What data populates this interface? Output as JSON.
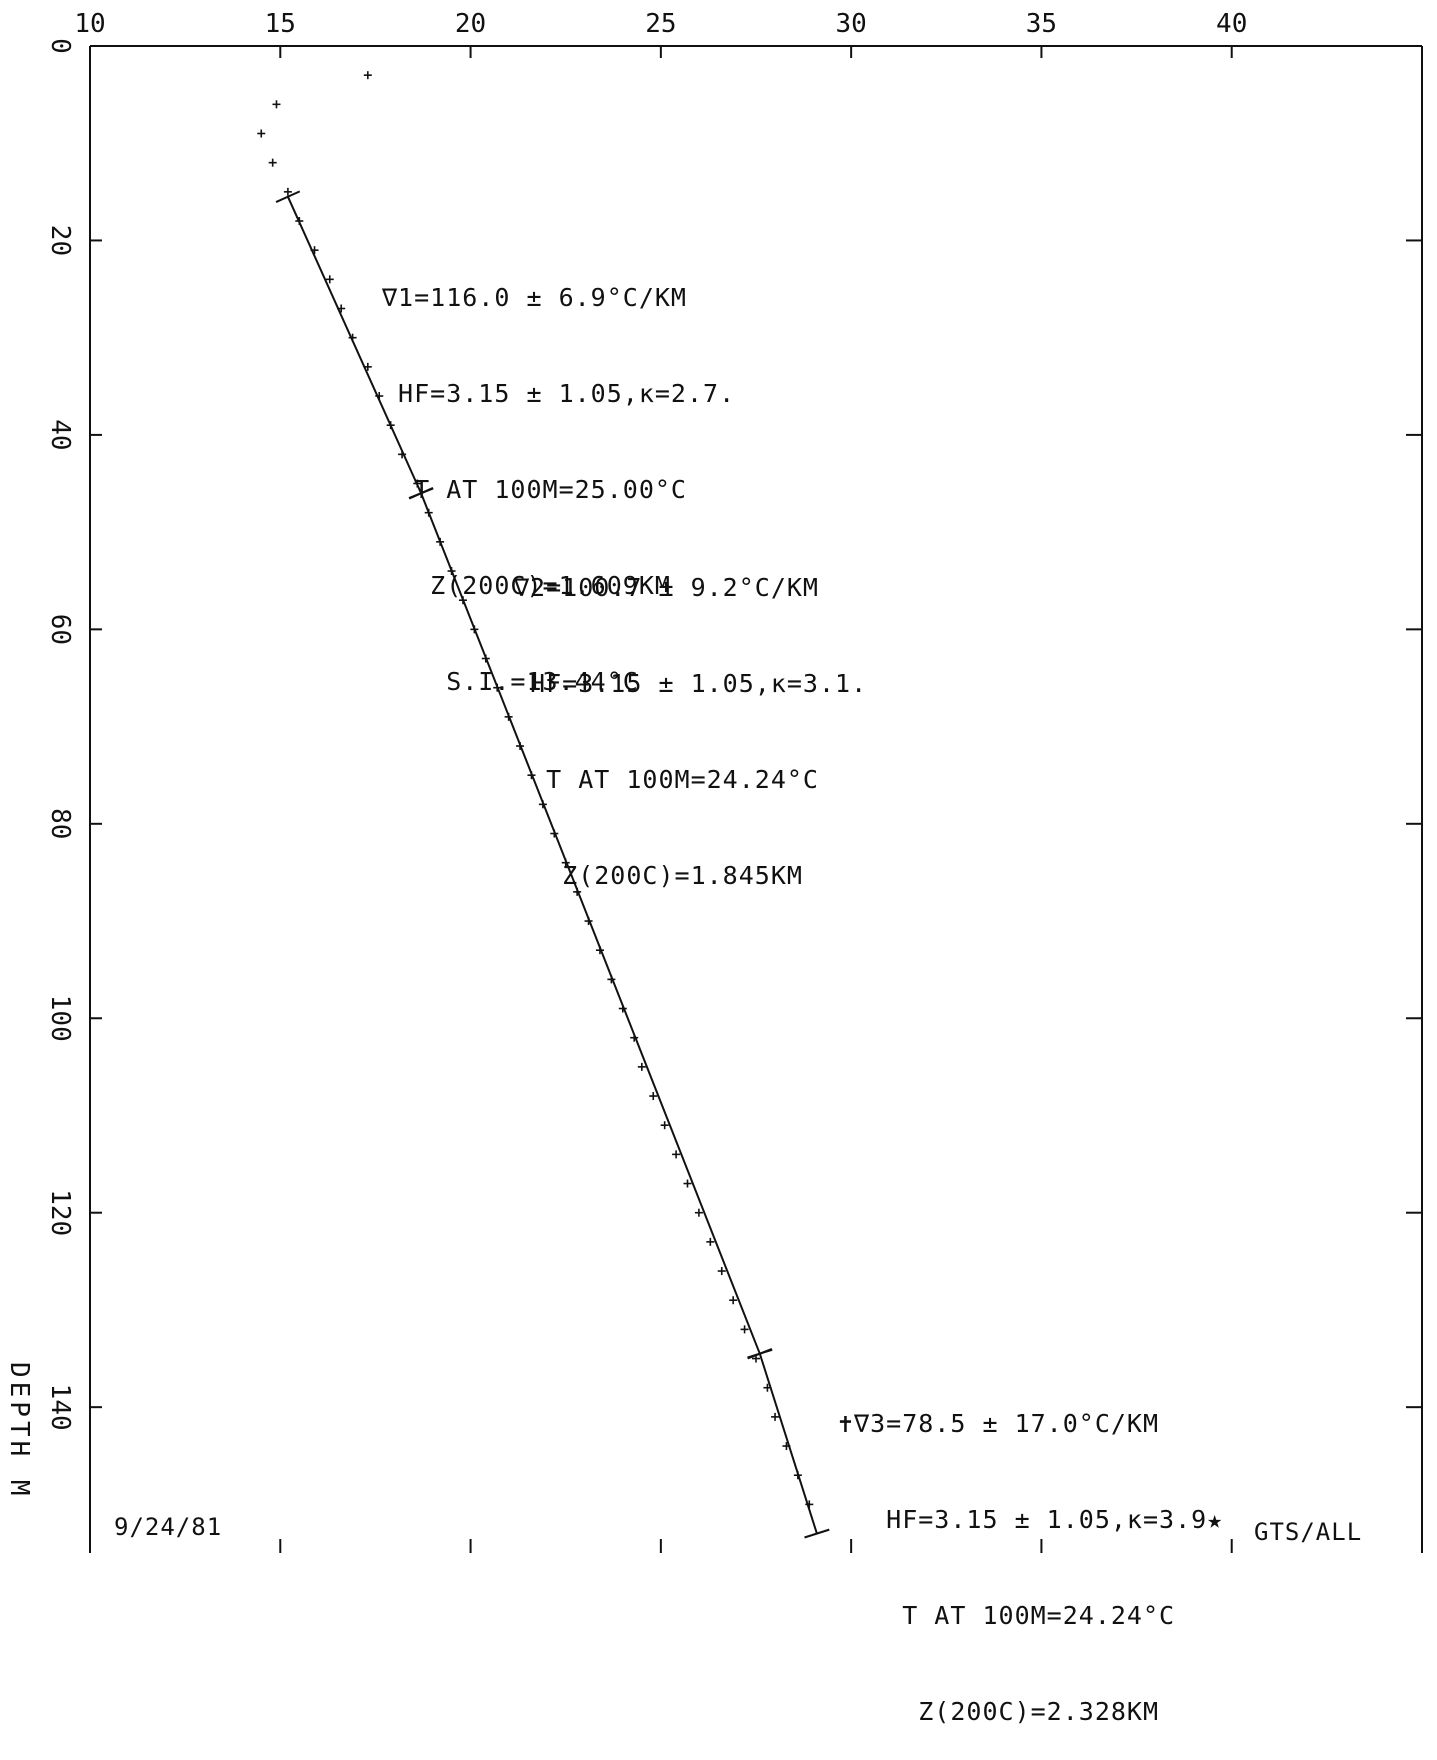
{
  "chart_data": {
    "type": "scatter",
    "title": "",
    "xlabel": "",
    "ylabel": "DEPTH M",
    "xlim": [
      10,
      45
    ],
    "ylim": [
      0,
      155
    ],
    "y_inverted": true,
    "x_ticks": [
      "10",
      "15",
      "20",
      "25",
      "30",
      "35",
      "40"
    ],
    "y_ticks": [
      "0",
      "20",
      "40",
      "60",
      "80",
      "100",
      "120",
      "140"
    ],
    "grid": false,
    "series": [
      {
        "values": [
          [
            17.3,
            3
          ],
          [
            14.9,
            6
          ],
          [
            14.5,
            9
          ],
          [
            14.8,
            12
          ],
          [
            15.2,
            15
          ],
          [
            15.5,
            18
          ],
          [
            15.9,
            21
          ],
          [
            16.3,
            24
          ],
          [
            16.6,
            27
          ],
          [
            16.9,
            30
          ],
          [
            17.3,
            33
          ],
          [
            17.6,
            36
          ],
          [
            17.9,
            39
          ],
          [
            18.2,
            42
          ],
          [
            18.6,
            45
          ],
          [
            18.9,
            48
          ],
          [
            19.2,
            51
          ],
          [
            19.5,
            54
          ],
          [
            19.8,
            57
          ],
          [
            20.1,
            60
          ],
          [
            20.4,
            63
          ],
          [
            20.7,
            66
          ],
          [
            21.0,
            69
          ],
          [
            21.3,
            72
          ],
          [
            21.6,
            75
          ],
          [
            21.9,
            78
          ],
          [
            22.2,
            81
          ],
          [
            22.5,
            84
          ],
          [
            22.8,
            87
          ],
          [
            23.1,
            90
          ],
          [
            23.4,
            93
          ],
          [
            23.7,
            96
          ],
          [
            24.0,
            99
          ],
          [
            24.3,
            102
          ],
          [
            24.5,
            105
          ],
          [
            24.8,
            108
          ],
          [
            25.1,
            111
          ],
          [
            25.4,
            114
          ],
          [
            25.7,
            117
          ],
          [
            26.0,
            120
          ],
          [
            26.3,
            123
          ],
          [
            26.6,
            126
          ],
          [
            26.9,
            129
          ],
          [
            27.2,
            132
          ],
          [
            27.5,
            135
          ],
          [
            27.8,
            138
          ],
          [
            28.0,
            141
          ],
          [
            28.3,
            144
          ],
          [
            28.6,
            147
          ],
          [
            28.9,
            150
          ]
        ]
      }
    ],
    "fit_segments": [
      {
        "from": [
          15.2,
          15.5
        ],
        "to": [
          18.7,
          46
        ]
      },
      {
        "from": [
          18.7,
          46
        ],
        "to": [
          27.6,
          134.5
        ]
      },
      {
        "from": [
          27.6,
          134.5
        ],
        "to": [
          29.1,
          153
        ]
      }
    ],
    "annotations": [
      {
        "id": "g1",
        "lines": [
          "∇1=116.0 ± 6.9°C/KM",
          " HF=3.15 ± 1.05,κ=2.7.",
          "  T AT 100M=25.00°C",
          "   Z(200C)=1.609KM",
          "    S.I.=13.44°C"
        ]
      },
      {
        "id": "g2",
        "lines": [
          "∇2=100.7 ± 9.2°C/KM",
          " HF=3.15 ± 1.05,κ=3.1.",
          "  T AT 100M=24.24°C",
          "   Z(200C)=1.845KM"
        ]
      },
      {
        "id": "g3",
        "lines": [
          "✝∇3=78.5 ± 17.0°C/KM",
          "   HF=3.15 ± 1.05,κ=3.9★",
          "    T AT 100M=24.24°C",
          "     Z(200C)=2.328KM"
        ]
      }
    ],
    "date": "9/24/81",
    "id_label": "GTS/ALL"
  }
}
